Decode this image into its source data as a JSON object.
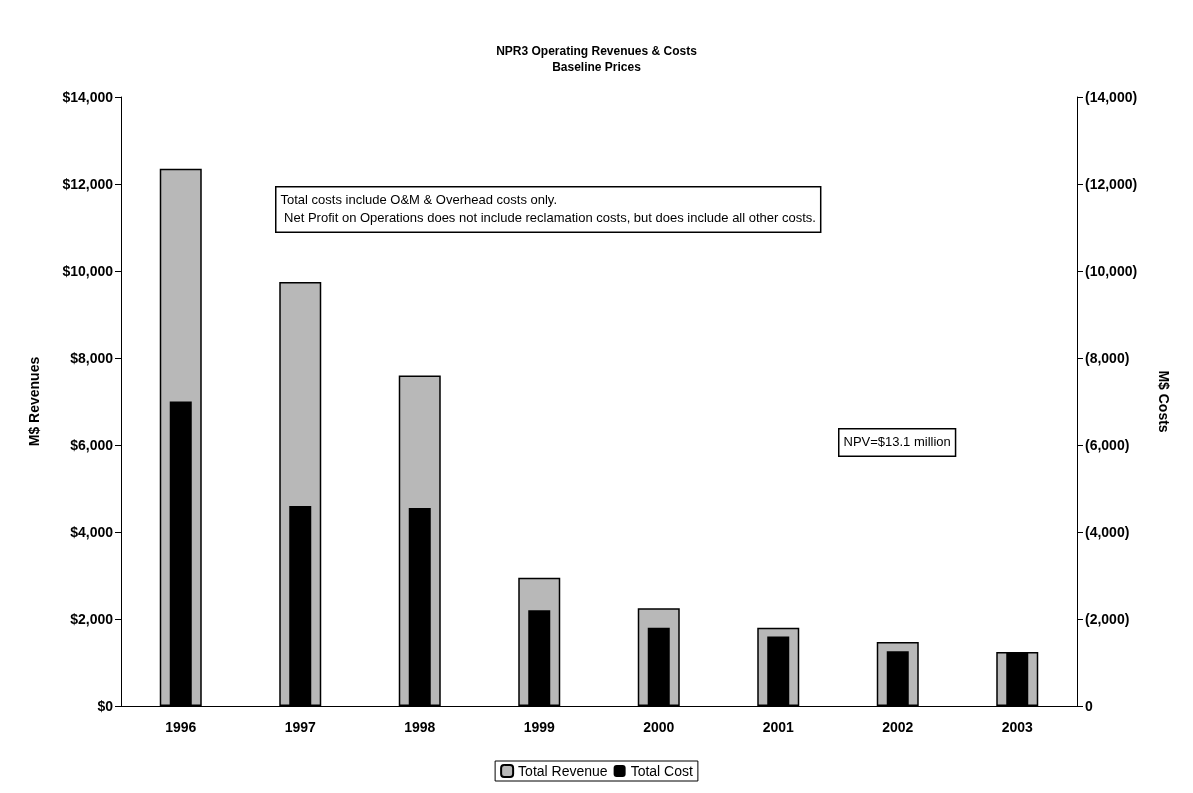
{
  "chart_data": {
    "type": "bar",
    "title": "NPR3 Operating Revenues & Costs",
    "subtitle": "Baseline Prices",
    "ylabel": "M$ Revenues",
    "y2label": "M$ Costs",
    "categories": [
      "1996",
      "1997",
      "1998",
      "1999",
      "2000",
      "2001",
      "2002",
      "2003"
    ],
    "series": [
      {
        "name": "Total Revenue",
        "color": "#b8b8b8",
        "values": [
          12350,
          9750,
          7600,
          2950,
          2250,
          1800,
          1470,
          1240
        ]
      },
      {
        "name": "Total Cost",
        "color": "#000000",
        "axis": "y2",
        "values": [
          7000,
          4600,
          4550,
          2200,
          1800,
          1600,
          1260,
          1220
        ]
      }
    ],
    "ylim": [
      0,
      14000
    ],
    "yticks": [
      {
        "value": 0,
        "label": "$0"
      },
      {
        "value": 2000,
        "label": "$2,000"
      },
      {
        "value": 4000,
        "label": "$4,000"
      },
      {
        "value": 6000,
        "label": "$6,000"
      },
      {
        "value": 8000,
        "label": "$8,000"
      },
      {
        "value": 10000,
        "label": "$10,000"
      },
      {
        "value": 12000,
        "label": "$12,000"
      },
      {
        "value": 14000,
        "label": "$14,000"
      }
    ],
    "y2lim": [
      0,
      14000
    ],
    "y2ticks": [
      0,
      {
        "value": 2000,
        "label": "(2,000)"
      },
      {
        "value": 4000,
        "label": "(4,000)"
      },
      {
        "value": 6000,
        "label": "(6,000)"
      },
      {
        "value": 8000,
        "label": "(8,000)"
      },
      {
        "value": 10000,
        "label": "(10,000)"
      },
      {
        "value": 12000,
        "label": "(12,000)"
      },
      {
        "value": 14000,
        "label": "(14,000)"
      }
    ],
    "annotations": [
      "Total costs include O&M & Overhead costs only.\n Net Profit on Operations does not include reclamation costs, but does include all other costs.",
      "NPV=$13.1 million"
    ],
    "grid": false,
    "legend": "bottom"
  }
}
